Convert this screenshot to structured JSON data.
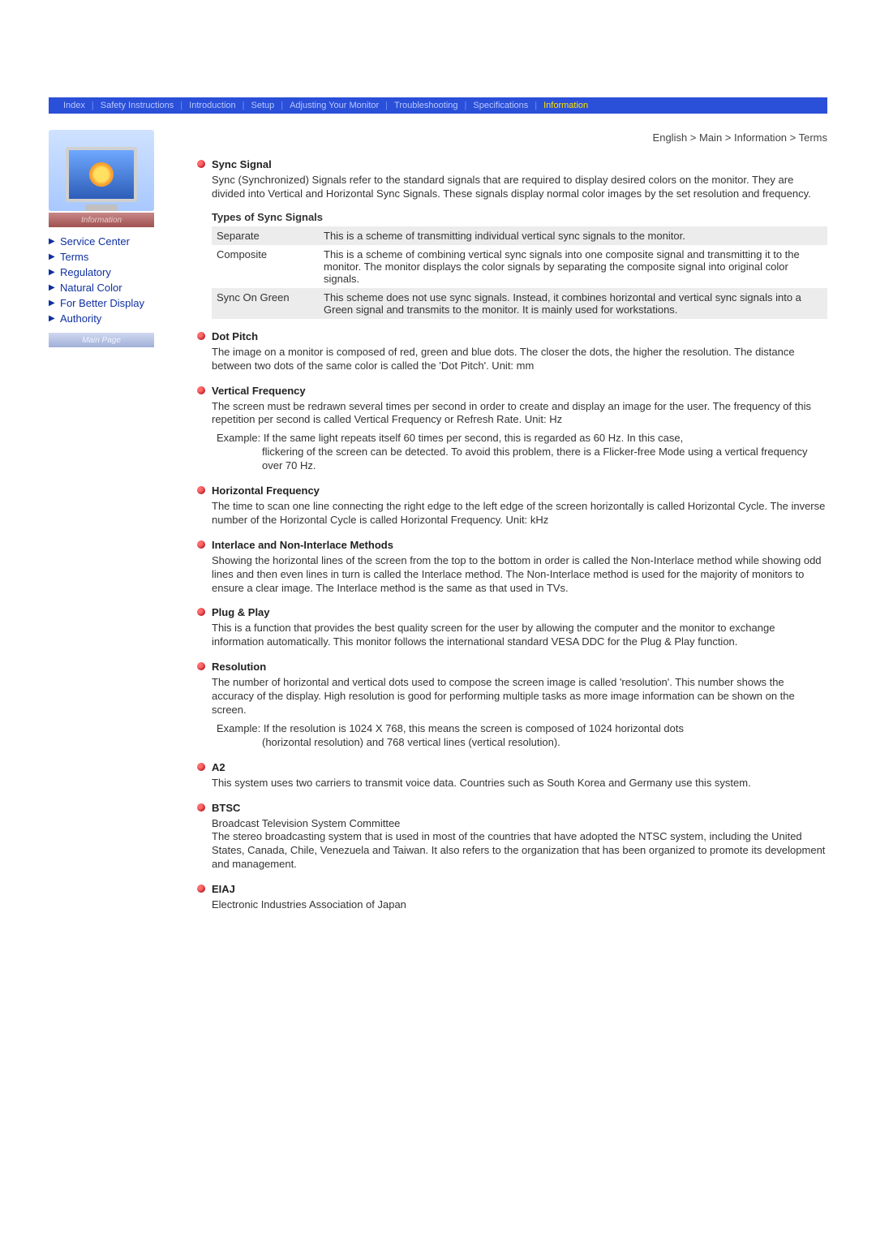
{
  "nav": {
    "items": [
      "Index",
      "Safety Instructions",
      "Introduction",
      "Setup",
      "Adjusting Your Monitor",
      "Troubleshooting",
      "Specifications",
      "Information"
    ],
    "active_index": 7,
    "bg_color": "#2a4fd8",
    "text_color": "#b8c8ff",
    "active_color": "#ffe400"
  },
  "breadcrumb": "English > Main > Information > Terms",
  "sidebar": {
    "card_label": "Information",
    "links": [
      "Service Center",
      "Terms",
      "Regulatory",
      "Natural Color",
      "For Better Display",
      "Authority"
    ],
    "footer": "Main Page",
    "link_color": "#1030a0"
  },
  "sections": [
    {
      "title": "Sync Signal",
      "body": "Sync (Synchronized) Signals refer to the standard signals that are required to display desired colors on the monitor. They are divided into Vertical and Horizontal Sync Signals. These signals display normal color images by the set resolution and frequency.",
      "table_title": "Types of Sync Signals",
      "table": [
        [
          "Separate",
          "This is a scheme of transmitting individual vertical sync signals to the monitor."
        ],
        [
          "Composite",
          "This is a scheme of combining vertical sync signals into one composite signal and transmitting it to the monitor. The monitor displays the color signals by separating the composite signal into original color signals."
        ],
        [
          "Sync On Green",
          "This scheme does not use sync signals. Instead, it combines horizontal and vertical sync signals into a Green signal and transmits to the monitor. It is mainly used for workstations."
        ]
      ]
    },
    {
      "title": "Dot Pitch",
      "body": "The image on a monitor is composed of red, green and blue dots. The closer the dots, the higher the resolution. The distance between two dots of the same color is called the 'Dot Pitch'. Unit: mm"
    },
    {
      "title": "Vertical Frequency",
      "body": "The screen must be redrawn several times per second in order to create and display an image for the user. The frequency of this repetition per second is called Vertical Frequency or Refresh Rate. Unit: Hz",
      "example_label": "Example:",
      "example_first": " If the same light repeats itself 60 times per second, this is regarded as 60 Hz. In this case,",
      "example_rest": "flickering of the screen can be detected. To avoid this problem, there is a Flicker-free Mode using a vertical frequency over 70 Hz."
    },
    {
      "title": "Horizontal Frequency",
      "body": "The time to scan one line connecting the right edge to the left edge of the screen horizontally is called Horizontal Cycle. The inverse number of the Horizontal Cycle is called Horizontal Frequency. Unit: kHz"
    },
    {
      "title": "Interlace and Non-Interlace Methods",
      "body": "Showing the horizontal lines of the screen from the top to the bottom in order is called the Non-Interlace method while showing odd lines and then even lines in turn is called the Interlace method. The Non-Interlace method is used for the majority of monitors to ensure a clear image. The Interlace method is the same as that used in TVs."
    },
    {
      "title": "Plug & Play",
      "body": "This is a function that provides the best quality screen for the user by allowing the computer and the monitor to exchange information automatically. This monitor follows the international standard VESA DDC for the Plug & Play function."
    },
    {
      "title": "Resolution",
      "body": "The number of horizontal and vertical dots used to compose the screen image is called 'resolution'. This number shows the accuracy of the display. High resolution is good for performing multiple tasks as more image information can be shown on the screen.",
      "example_label": "Example:",
      "example_first": " If the resolution is 1024 X 768, this means the screen is composed of 1024 horizontal dots",
      "example_rest": "(horizontal resolution) and 768 vertical lines (vertical resolution)."
    },
    {
      "title": "A2",
      "body": "This system uses two carriers to transmit voice data. Countries such as South Korea and Germany use this system."
    },
    {
      "title": "BTSC",
      "body": "Broadcast Television System Committee\nThe stereo broadcasting system that is used in most of the countries that have adopted the NTSC system, including the United States, Canada, Chile, Venezuela and Taiwan. It also refers to the organization that has been organized to promote its development and management."
    },
    {
      "title": "EIAJ",
      "body": "Electronic Industries Association of Japan"
    }
  ],
  "colors": {
    "bullet_gradient_light": "#ff6a6a",
    "bullet_gradient_dark": "#b01020",
    "table_row_alt": "#ececec",
    "body_text": "#333333"
  }
}
